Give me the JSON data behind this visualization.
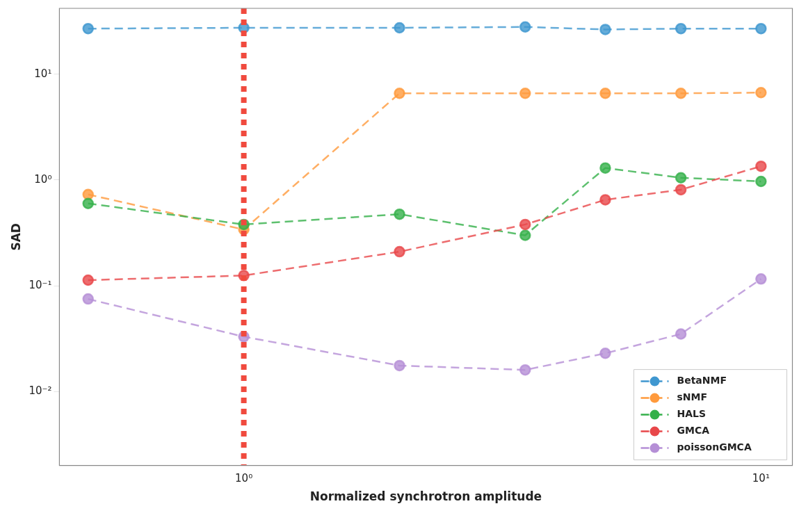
{
  "chart_data": {
    "type": "line",
    "xlabel": "Normalized synchrotron amplitude",
    "ylabel": "SAD",
    "x": [
      0.5,
      1,
      2,
      3.5,
      5,
      7,
      10
    ],
    "series": [
      {
        "name": "BetaNMF",
        "color": "#3f97d0",
        "values": [
          27,
          27.5,
          27.5,
          28,
          26.5,
          27,
          27
        ]
      },
      {
        "name": "sNMF",
        "color": "#ff9a3c",
        "values": [
          0.73,
          0.34,
          6.6,
          6.6,
          6.6,
          6.6,
          6.7
        ]
      },
      {
        "name": "HALS",
        "color": "#34b04a",
        "values": [
          0.6,
          0.38,
          0.475,
          0.3,
          1.3,
          1.05,
          0.97
        ]
      },
      {
        "name": "GMCA",
        "color": "#e8474a",
        "values": [
          0.113,
          0.125,
          0.21,
          0.38,
          0.65,
          0.81,
          1.35
        ]
      },
      {
        "name": "poissonGMCA",
        "color": "#b58fd6",
        "values": [
          0.075,
          0.033,
          0.0176,
          0.016,
          0.023,
          0.035,
          0.116
        ]
      }
    ],
    "log": "xy",
    "xlim": [
      0.44,
      11.5
    ],
    "ylim": [
      0.002,
      42
    ],
    "xticks": [
      {
        "value": 1,
        "label": "10⁰"
      },
      {
        "value": 10,
        "label": "10¹"
      }
    ],
    "yticks": [
      {
        "value": 0.01,
        "label": "10⁻²"
      },
      {
        "value": 0.1,
        "label": "10⁻¹"
      },
      {
        "value": 1,
        "label": "10⁰"
      },
      {
        "value": 10,
        "label": "10¹"
      }
    ],
    "ref_lines": [
      {
        "axis": "x",
        "value": 1,
        "color": "#f04a3e",
        "line_style": "dotted"
      }
    ],
    "legend": "bottom right",
    "marker": "circle",
    "line_style": "dashed",
    "grid": false
  }
}
